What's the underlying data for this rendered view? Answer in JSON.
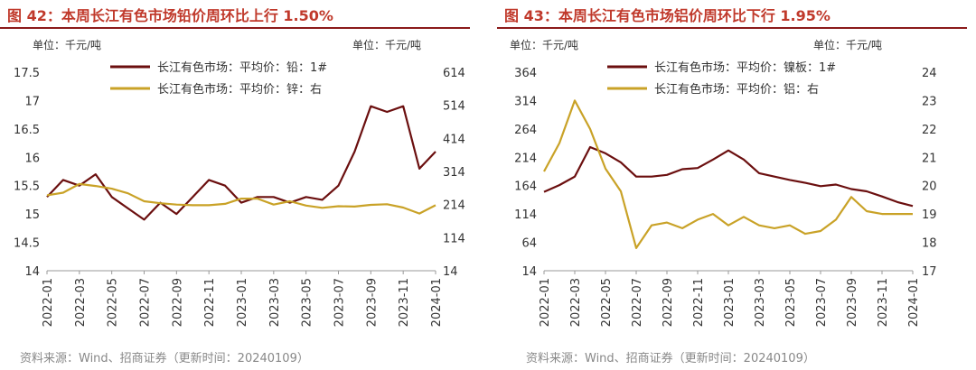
{
  "source_text": "资料来源：Wind、招商证券（更新时间：20240109）",
  "chart_data": [
    {
      "type": "line",
      "title": "图 42：本周长江有色市场铅价周环比上行 1.50%",
      "unit_left": "单位：千元/吨",
      "unit_right": "单位：千元/吨",
      "x_ticks": [
        "2022-01",
        "2022-03",
        "2022-05",
        "2022-07",
        "2022-09",
        "2022-11",
        "2023-01",
        "2023-03",
        "2023-05",
        "2023-07",
        "2023-09",
        "2023-11",
        "2024-01"
      ],
      "xlim": [
        "2022-01",
        "2024-01"
      ],
      "ylim_left": [
        14,
        17.5
      ],
      "y_ticks_left": [
        "14",
        "14.5",
        "15",
        "15.5",
        "16",
        "16.5",
        "17",
        "17.5"
      ],
      "ylim_right": [
        14,
        614
      ],
      "y_ticks_right": [
        "14",
        "114",
        "214",
        "314",
        "414",
        "514",
        "614"
      ],
      "series": [
        {
          "name": "长江有色市场：平均价：铅：1#",
          "axis": "left",
          "color": "#6b0f0f",
          "x": [
            "2022-01",
            "2022-02",
            "2022-03",
            "2022-04",
            "2022-05",
            "2022-06",
            "2022-07",
            "2022-08",
            "2022-09",
            "2022-10",
            "2022-11",
            "2022-12",
            "2023-01",
            "2023-02",
            "2023-03",
            "2023-04",
            "2023-05",
            "2023-06",
            "2023-07",
            "2023-08",
            "2023-09",
            "2023-10",
            "2023-11",
            "2023-12",
            "2024-01"
          ],
          "y": [
            15.3,
            15.6,
            15.5,
            15.7,
            15.3,
            15.1,
            14.9,
            15.2,
            15.0,
            15.3,
            15.6,
            15.5,
            15.2,
            15.3,
            15.3,
            15.2,
            15.3,
            15.25,
            15.5,
            16.1,
            16.9,
            16.8,
            16.9,
            15.8,
            16.1
          ]
        },
        {
          "name": "长江有色市场：平均价：锌：右",
          "axis": "right",
          "color": "#c9a227",
          "x": [
            "2022-01",
            "2022-02",
            "2022-03",
            "2022-04",
            "2022-05",
            "2022-06",
            "2022-07",
            "2022-08",
            "2022-09",
            "2022-10",
            "2022-11",
            "2022-12",
            "2023-01",
            "2023-02",
            "2023-03",
            "2023-04",
            "2023-05",
            "2023-06",
            "2023-07",
            "2023-08",
            "2023-09",
            "2023-10",
            "2023-11",
            "2023-12",
            "2024-01"
          ],
          "y": [
            242,
            250,
            276,
            270,
            262,
            248,
            224,
            218,
            214,
            212,
            212,
            216,
            232,
            232,
            214,
            224,
            211,
            204,
            209,
            208,
            213,
            215,
            205,
            187,
            212
          ]
        }
      ],
      "legend_position": "top"
    },
    {
      "type": "line",
      "title": "图 43：本周长江有色市场铝价周环比下行 1.95%",
      "unit_left": "单位：千元/吨",
      "unit_right": "单位：千元/吨",
      "x_ticks": [
        "2022-01",
        "2022-03",
        "2022-05",
        "2022-07",
        "2022-09",
        "2022-11",
        "2023-01",
        "2023-03",
        "2023-05",
        "2023-07",
        "2023-09",
        "2023-11",
        "2024-01"
      ],
      "xlim": [
        "2022-01",
        "2024-01"
      ],
      "ylim_left": [
        14,
        364
      ],
      "y_ticks_left": [
        "14",
        "64",
        "114",
        "164",
        "214",
        "264",
        "314",
        "364"
      ],
      "ylim_right": [
        17,
        24
      ],
      "y_ticks_right": [
        "17",
        "18",
        "19",
        "20",
        "21",
        "22",
        "23",
        "24"
      ],
      "series": [
        {
          "name": "长江有色市场：平均价：镍板：1#",
          "axis": "left",
          "color": "#6b0f0f",
          "x": [
            "2022-01",
            "2022-02",
            "2022-03",
            "2022-04",
            "2022-05",
            "2022-06",
            "2022-07",
            "2022-08",
            "2022-09",
            "2022-10",
            "2022-11",
            "2022-12",
            "2023-01",
            "2023-02",
            "2023-03",
            "2023-04",
            "2023-05",
            "2023-06",
            "2023-07",
            "2023-08",
            "2023-09",
            "2023-10",
            "2023-11",
            "2023-12",
            "2024-01"
          ],
          "y": [
            153,
            165,
            180,
            232,
            221,
            205,
            180,
            180,
            183,
            193,
            195,
            210,
            226,
            210,
            186,
            180,
            174,
            169,
            163,
            166,
            158,
            154,
            145,
            135,
            128
          ]
        },
        {
          "name": "长江有色市场：平均价：铝：右",
          "axis": "right",
          "color": "#c9a227",
          "x": [
            "2022-01",
            "2022-02",
            "2022-03",
            "2022-04",
            "2022-05",
            "2022-06",
            "2022-07",
            "2022-08",
            "2022-09",
            "2022-10",
            "2022-11",
            "2022-12",
            "2023-01",
            "2023-02",
            "2023-03",
            "2023-04",
            "2023-05",
            "2023-06",
            "2023-07",
            "2023-08",
            "2023-09",
            "2023-10",
            "2023-11",
            "2023-12",
            "2024-01"
          ],
          "y": [
            20.5,
            21.5,
            23.0,
            22.0,
            20.6,
            19.8,
            17.8,
            18.6,
            18.7,
            18.5,
            18.8,
            19.0,
            18.6,
            18.9,
            18.6,
            18.5,
            18.6,
            18.3,
            18.4,
            18.8,
            19.6,
            19.1,
            19.0,
            19.0,
            19.0
          ]
        }
      ],
      "legend_position": "top"
    }
  ]
}
